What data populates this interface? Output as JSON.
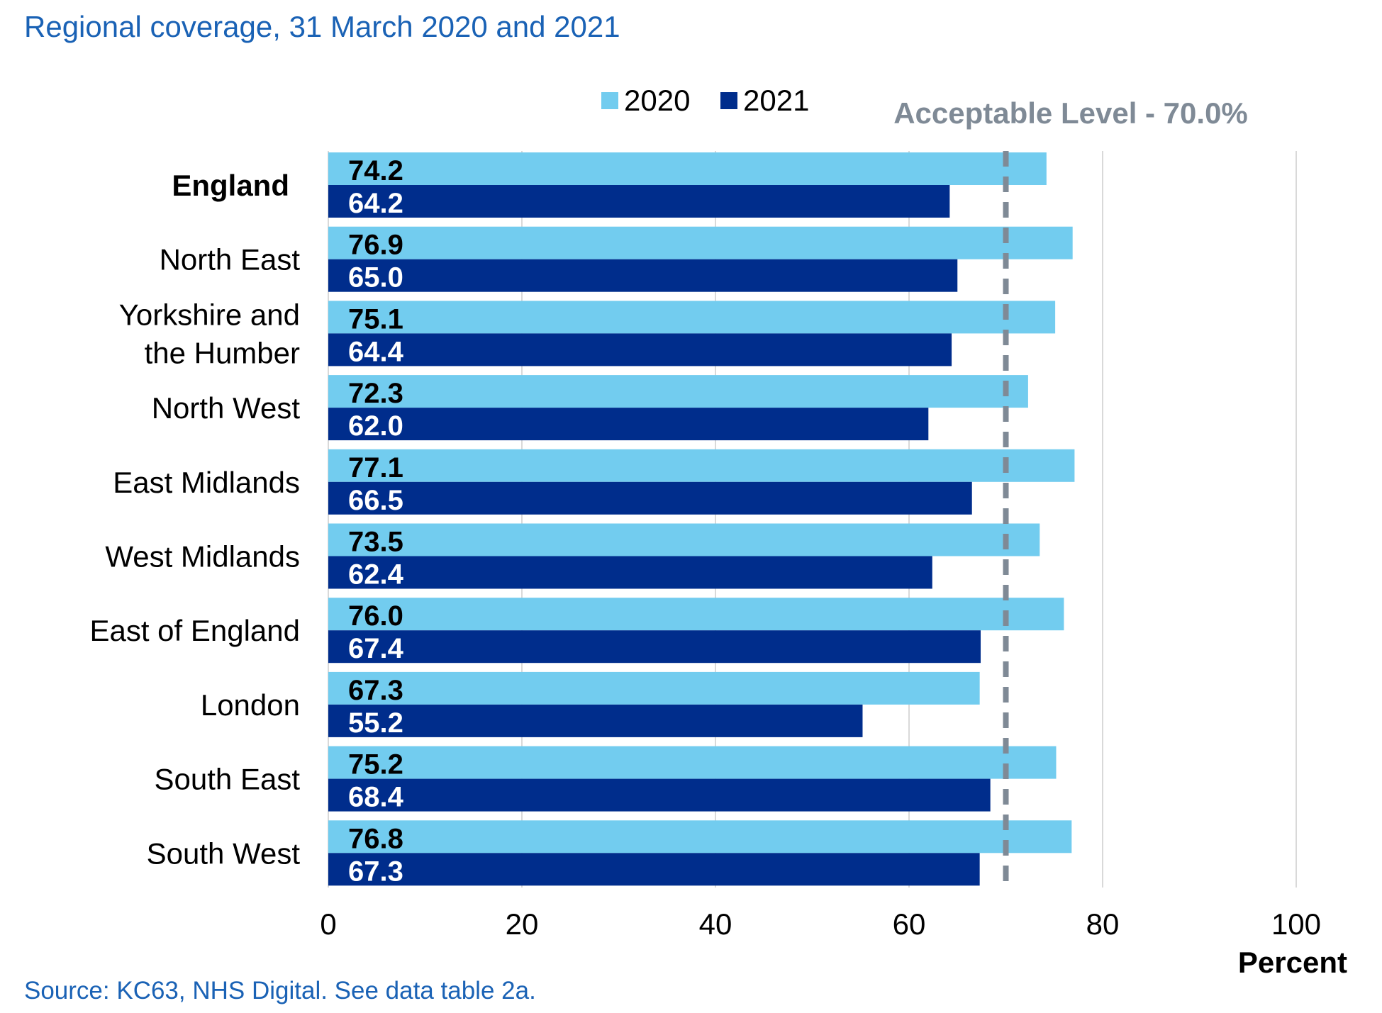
{
  "title": "Regional coverage, 31 March 2020 and 2021",
  "source": "Source: KC63, NHS Digital. See data table 2a.",
  "colors": {
    "series_2020": "#72ccef",
    "series_2021": "#002d8c",
    "reference_line": "#7f8a96",
    "gridline": "#d9d9d9",
    "title_text": "#1a62b5"
  },
  "chart_data": {
    "type": "bar",
    "orientation": "horizontal",
    "categories": [
      [
        "England"
      ],
      [
        "North East"
      ],
      [
        "Yorkshire and",
        "the Humber"
      ],
      [
        "North West"
      ],
      [
        "East Midlands"
      ],
      [
        "West Midlands"
      ],
      [
        "East of England"
      ],
      [
        "London"
      ],
      [
        "South East"
      ],
      [
        "South West"
      ]
    ],
    "emphasized_category": "England",
    "series": [
      {
        "name": "2020",
        "values": [
          74.2,
          76.9,
          75.1,
          72.3,
          77.1,
          73.5,
          76.0,
          67.3,
          75.2,
          76.8
        ],
        "labels": [
          "74.2",
          "76.9",
          "75.1",
          "72.3",
          "77.1",
          "73.5",
          "76.0",
          "67.3",
          "75.2",
          "76.8"
        ],
        "label_color": "#000000"
      },
      {
        "name": "2021",
        "values": [
          64.2,
          65.0,
          64.4,
          62.0,
          66.5,
          62.4,
          67.4,
          55.2,
          68.4,
          67.3
        ],
        "labels": [
          "64.2",
          "65.0",
          "64.4",
          "62.0",
          "66.5",
          "62.4",
          "67.4",
          "55.2",
          "68.4",
          "67.3"
        ],
        "label_color": "#ffffff"
      }
    ],
    "x_ticks": [
      "0",
      "20",
      "40",
      "60",
      "80",
      "100"
    ],
    "xlim": [
      0,
      100
    ],
    "xlabel": "Percent",
    "ylabel": "",
    "grid": "vertical",
    "legend_position": "top",
    "reference_line": {
      "value": 70,
      "label": "Acceptable Level - 70.0%"
    }
  }
}
